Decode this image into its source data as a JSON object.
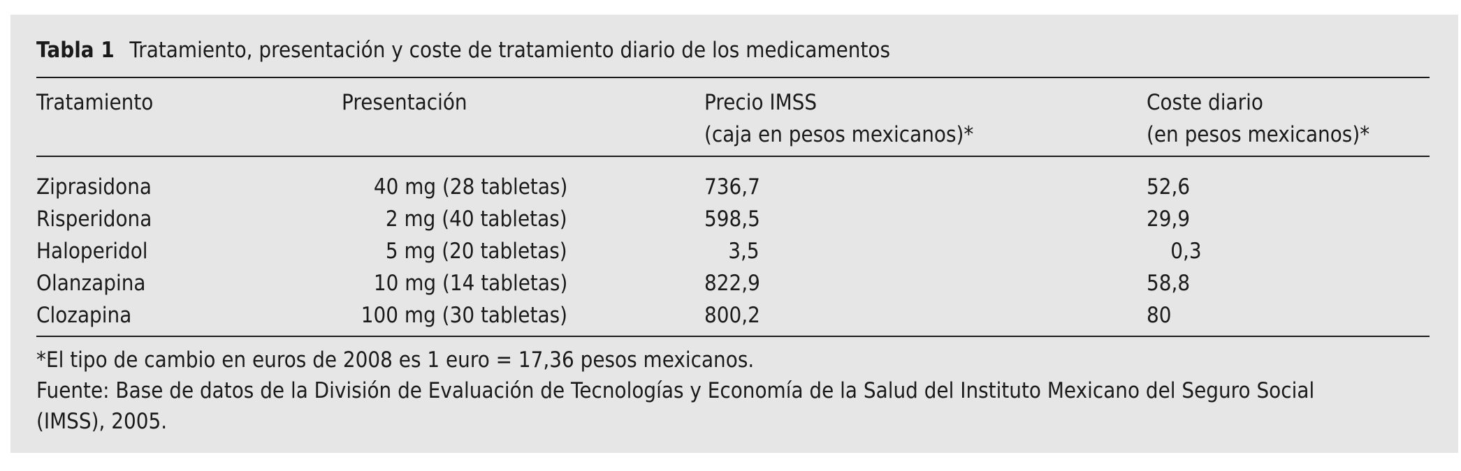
{
  "table": {
    "label": "Tabla 1",
    "title": "Tratamiento, presentación y coste de tratamiento diario de los medicamentos",
    "headers": {
      "tratamiento": "Tratamiento",
      "presentacion": "Presentación",
      "precio_line1": "Precio IMSS",
      "precio_line2": "(caja en pesos mexicanos)*",
      "coste_line1": "Coste diario",
      "coste_line2": "(en pesos mexicanos)*"
    },
    "rows": [
      {
        "tratamiento": "Ziprasidona",
        "presentacion": "40 mg (28 tabletas)",
        "precio": "736,7",
        "coste": "52,6"
      },
      {
        "tratamiento": "Risperidona",
        "presentacion": "2 mg (40 tabletas)",
        "precio": "598,5",
        "coste": "29,9"
      },
      {
        "tratamiento": "Haloperidol",
        "presentacion": "5 mg (20 tabletas)",
        "precio": "3,5",
        "coste": "0,3"
      },
      {
        "tratamiento": "Olanzapina",
        "presentacion": "10 mg (14 tabletas)",
        "precio": "822,9",
        "coste": "58,8"
      },
      {
        "tratamiento": "Clozapina",
        "presentacion": "100 mg (30 tabletas)",
        "precio": "800,2",
        "coste": "80"
      }
    ],
    "footnotes": {
      "exchange": "*El tipo de cambio en euros de 2008 es 1 euro = 17,36 pesos mexicanos.",
      "source_line1": "Fuente: Base de datos de la División de Evaluación de Tecnologías y Economía de la Salud del Instituto Mexicano del Seguro Social",
      "source_line2": "(IMSS), 2005."
    }
  }
}
